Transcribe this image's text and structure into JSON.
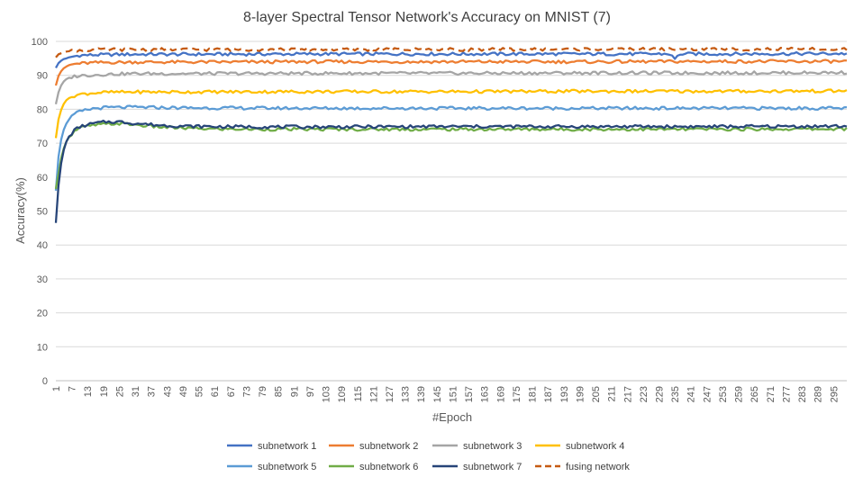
{
  "chart_data": {
    "type": "line",
    "title": "8-layer Spectral Tensor Network's Accuracy on MNIST    (7)",
    "xlabel": "#Epoch",
    "ylabel": "Accuracy(%)",
    "ylim": [
      0,
      100
    ],
    "yticks": [
      0,
      10,
      20,
      30,
      40,
      50,
      60,
      70,
      80,
      90,
      100
    ],
    "xlim": [
      1,
      300
    ],
    "xticks": [
      1,
      7,
      13,
      19,
      25,
      31,
      37,
      43,
      49,
      55,
      61,
      67,
      73,
      79,
      85,
      91,
      97,
      103,
      109,
      115,
      121,
      127,
      133,
      139,
      145,
      151,
      157,
      163,
      169,
      175,
      181,
      187,
      193,
      199,
      205,
      211,
      217,
      223,
      229,
      235,
      241,
      247,
      253,
      259,
      265,
      271,
      277,
      283,
      289,
      295
    ],
    "grid": "horizontal",
    "legend_position": "bottom",
    "series": [
      {
        "name": "subnetwork 1",
        "color": "#4472C4",
        "dash": "solid",
        "x": [
          1,
          2,
          3,
          4,
          5,
          6,
          8,
          10,
          15,
          20,
          30,
          50,
          100,
          150,
          200,
          233,
          235,
          237,
          250,
          300
        ],
        "y": [
          92.2,
          93.6,
          94.3,
          94.8,
          95.0,
          95.3,
          95.6,
          95.9,
          96.0,
          96.1,
          96.2,
          96.2,
          96.3,
          96.3,
          96.3,
          96.3,
          94.8,
          96.3,
          96.3,
          96.4
        ]
      },
      {
        "name": "subnetwork 2",
        "color": "#ED7D31",
        "dash": "solid",
        "x": [
          1,
          2,
          3,
          4,
          5,
          6,
          8,
          10,
          15,
          20,
          30,
          50,
          100,
          150,
          200,
          250,
          300
        ],
        "y": [
          87.0,
          89.8,
          91.2,
          92.1,
          92.6,
          93.0,
          93.3,
          93.5,
          93.7,
          93.8,
          93.9,
          93.9,
          94.0,
          94.0,
          94.0,
          94.1,
          94.1
        ]
      },
      {
        "name": "subnetwork 3",
        "color": "#A5A5A5",
        "dash": "solid",
        "x": [
          1,
          2,
          3,
          4,
          5,
          6,
          8,
          10,
          15,
          20,
          30,
          50,
          100,
          150,
          200,
          250,
          300
        ],
        "y": [
          81.5,
          85.0,
          87.0,
          88.2,
          88.9,
          89.3,
          89.7,
          89.9,
          90.1,
          90.3,
          90.5,
          90.5,
          90.6,
          90.6,
          90.7,
          90.7,
          90.8
        ]
      },
      {
        "name": "subnetwork 4",
        "color": "#FFC000",
        "dash": "solid",
        "x": [
          1,
          2,
          3,
          4,
          5,
          6,
          8,
          10,
          15,
          20,
          30,
          50,
          100,
          150,
          200,
          250,
          300
        ],
        "y": [
          71.5,
          77.0,
          79.8,
          81.6,
          82.7,
          83.3,
          84.0,
          84.4,
          84.8,
          85.0,
          85.1,
          85.1,
          85.2,
          85.2,
          85.3,
          85.3,
          85.4
        ]
      },
      {
        "name": "subnetwork 5",
        "color": "#5B9BD5",
        "dash": "solid",
        "x": [
          1,
          2,
          3,
          4,
          5,
          6,
          8,
          10,
          15,
          20,
          30,
          50,
          100,
          150,
          200,
          250,
          300
        ],
        "y": [
          56.0,
          66.0,
          71.0,
          74.0,
          75.8,
          77.0,
          78.5,
          79.3,
          80.2,
          80.5,
          80.6,
          80.4,
          80.3,
          80.3,
          80.3,
          80.3,
          80.3
        ]
      },
      {
        "name": "subnetwork 6",
        "color": "#70AD47",
        "dash": "solid",
        "x": [
          1,
          2,
          3,
          4,
          5,
          6,
          8,
          10,
          15,
          20,
          25,
          30,
          40,
          50,
          60,
          80,
          100,
          150,
          200,
          250,
          300
        ],
        "y": [
          56.5,
          61.0,
          65.5,
          68.5,
          70.5,
          71.8,
          73.5,
          74.5,
          75.3,
          75.6,
          75.8,
          75.5,
          74.8,
          74.4,
          74.2,
          74.1,
          74.1,
          74.1,
          74.1,
          74.1,
          74.2
        ]
      },
      {
        "name": "subnetwork 7",
        "color": "#264478",
        "dash": "solid",
        "x": [
          1,
          2,
          3,
          4,
          5,
          6,
          8,
          10,
          15,
          20,
          25,
          30,
          40,
          50,
          60,
          80,
          100,
          150,
          200,
          250,
          300
        ],
        "y": [
          46.5,
          57.5,
          64.0,
          68.0,
          70.5,
          72.0,
          73.8,
          74.8,
          75.8,
          76.3,
          76.3,
          75.9,
          75.3,
          75.0,
          74.9,
          74.8,
          74.8,
          74.9,
          74.9,
          74.9,
          75.0
        ]
      },
      {
        "name": "fusing network",
        "color": "#C55A11",
        "dash": "dashed",
        "x": [
          1,
          2,
          3,
          4,
          5,
          6,
          8,
          10,
          15,
          20,
          30,
          50,
          100,
          150,
          200,
          250,
          300
        ],
        "y": [
          95.3,
          96.2,
          96.5,
          96.8,
          97.0,
          97.1,
          97.3,
          97.4,
          97.5,
          97.6,
          97.6,
          97.6,
          97.6,
          97.6,
          97.7,
          97.7,
          97.7
        ]
      }
    ]
  }
}
